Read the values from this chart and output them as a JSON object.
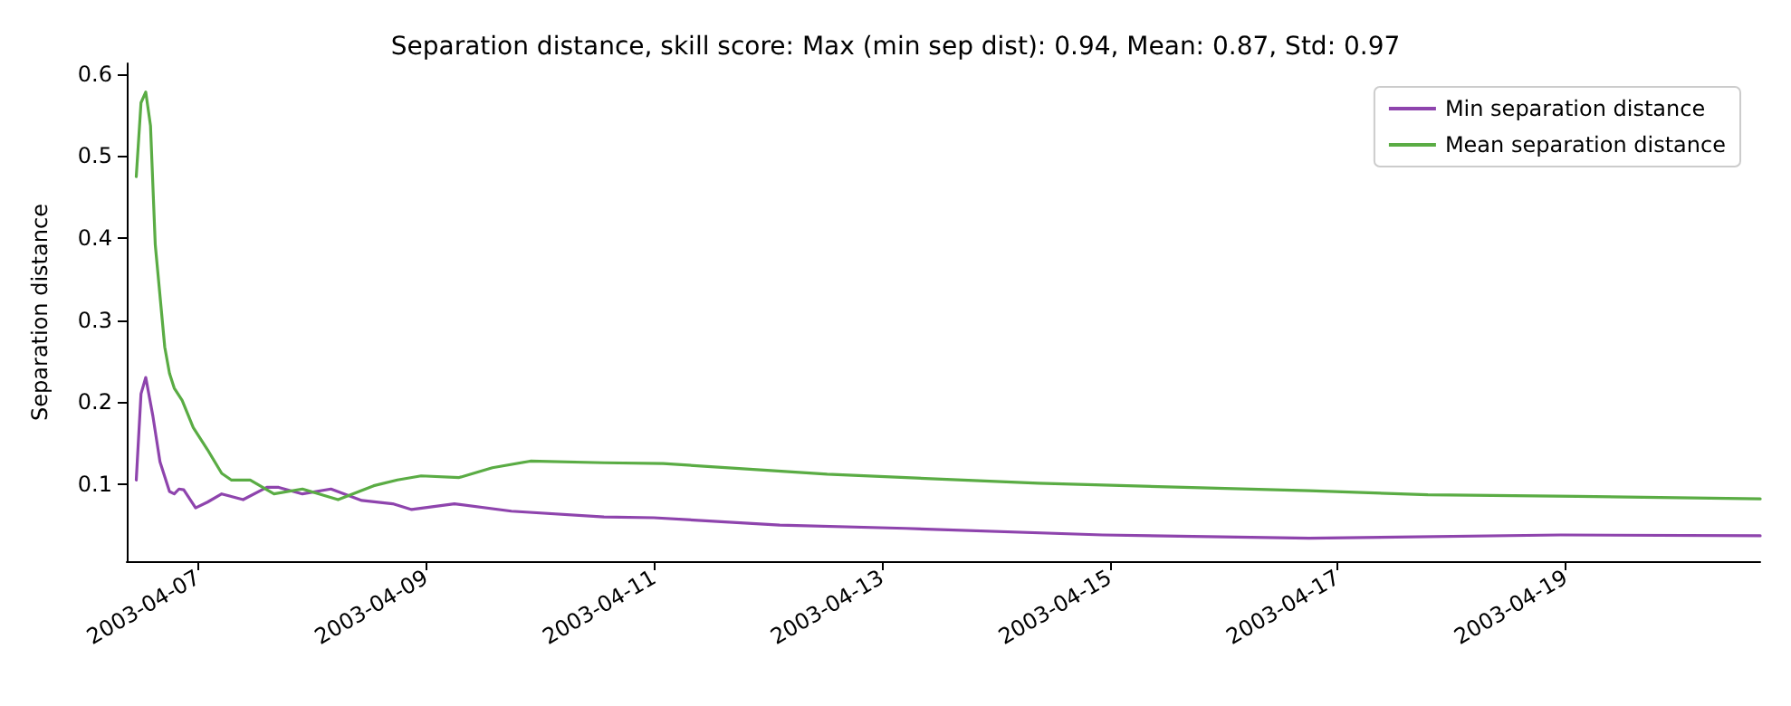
{
  "chart_data": {
    "type": "line",
    "title": "Separation distance, skill score: Max (min sep dist): 0.94, Mean: 0.87, Std: 0.97",
    "ylabel": "Separation distance",
    "xlim": [
      "2003-04-06T09:00",
      "2003-04-20T17:00"
    ],
    "xticks": [
      "2003-04-07",
      "2003-04-09",
      "2003-04-11",
      "2003-04-13",
      "2003-04-15",
      "2003-04-17",
      "2003-04-19"
    ],
    "ylim": [
      0.006,
      0.613
    ],
    "yticks": [
      0.1,
      0.2,
      0.3,
      0.4,
      0.5,
      0.6
    ],
    "grid": false,
    "legend": "top right",
    "marker": "none",
    "line_style": "solid",
    "series": [
      {
        "name": "Min separation distance",
        "color": "#8e44ad",
        "x": [
          "2003-04-06T11:00",
          "2003-04-06T12:00",
          "2003-04-06T13:00",
          "2003-04-06T14:30",
          "2003-04-06T16:00",
          "2003-04-06T18:00",
          "2003-04-06T19:00",
          "2003-04-06T20:00",
          "2003-04-06T21:00",
          "2003-04-06T23:30",
          "2003-04-07T02:00",
          "2003-04-07T05:00",
          "2003-04-07T09:30",
          "2003-04-07T14:30",
          "2003-04-07T17:00",
          "2003-04-07T22:00",
          "2003-04-08T04:00",
          "2003-04-08T10:30",
          "2003-04-08T17:00",
          "2003-04-08T21:00",
          "2003-04-09T06:00",
          "2003-04-09T18:00",
          "2003-04-10T13:30",
          "2003-04-11T00:00",
          "2003-04-12T02:30",
          "2003-04-13T05:00",
          "2003-04-14T22:30",
          "2003-04-16T18:00",
          "2003-04-18T23:00",
          "2003-04-20T17:00"
        ],
        "values": [
          0.105,
          0.21,
          0.23,
          0.183,
          0.127,
          0.091,
          0.088,
          0.094,
          0.093,
          0.071,
          0.078,
          0.088,
          0.081,
          0.096,
          0.096,
          0.088,
          0.094,
          0.08,
          0.076,
          0.069,
          0.076,
          0.067,
          0.06,
          0.059,
          0.05,
          0.046,
          0.038,
          0.034,
          0.038,
          0.037
        ]
      },
      {
        "name": "Mean separation distance",
        "color": "#5aac44",
        "x": [
          "2003-04-06T11:00",
          "2003-04-06T12:00",
          "2003-04-06T13:00",
          "2003-04-06T14:00",
          "2003-04-06T15:00",
          "2003-04-06T17:00",
          "2003-04-06T18:00",
          "2003-04-06T19:00",
          "2003-04-06T20:40",
          "2003-04-06T23:00",
          "2003-04-07T02:00",
          "2003-04-07T05:00",
          "2003-04-07T07:00",
          "2003-04-07T11:00",
          "2003-04-07T16:00",
          "2003-04-07T22:00",
          "2003-04-08T05:30",
          "2003-04-08T13:00",
          "2003-04-08T18:00",
          "2003-04-08T23:00",
          "2003-04-09T07:00",
          "2003-04-09T14:00",
          "2003-04-09T22:00",
          "2003-04-10T13:30",
          "2003-04-11T02:00",
          "2003-04-12T12:30",
          "2003-04-14T09:00",
          "2003-04-16T18:00",
          "2003-04-17T19:00",
          "2003-04-19T02:30",
          "2003-04-20T17:00"
        ],
        "values": [
          0.475,
          0.565,
          0.578,
          0.537,
          0.392,
          0.267,
          0.235,
          0.217,
          0.202,
          0.169,
          0.142,
          0.113,
          0.105,
          0.105,
          0.088,
          0.094,
          0.081,
          0.098,
          0.105,
          0.11,
          0.108,
          0.12,
          0.128,
          0.126,
          0.125,
          0.112,
          0.101,
          0.092,
          0.087,
          0.085,
          0.082
        ]
      }
    ]
  }
}
